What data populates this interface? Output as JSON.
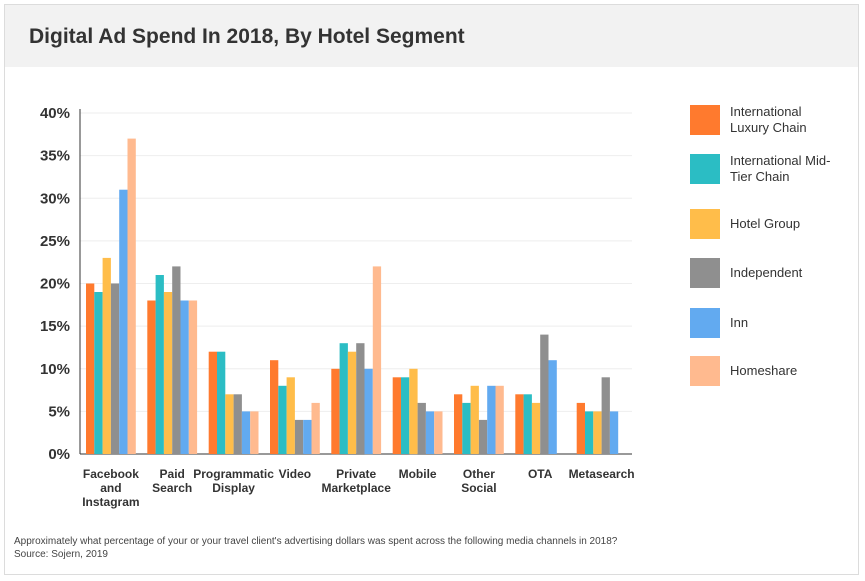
{
  "title": "Digital Ad Spend In 2018, By Hotel Segment",
  "footnote": {
    "question": "Approximately what percentage of your or your travel client's advertising dollars was spent across the following media channels in 2018?",
    "source": "Source: Sojern, 2019"
  },
  "chart_data": {
    "type": "bar",
    "title": "Digital Ad Spend In 2018, By Hotel Segment",
    "xlabel": "",
    "ylabel": "",
    "ylim": [
      0,
      40
    ],
    "yticks": [
      "0%",
      "5%",
      "10%",
      "15%",
      "20%",
      "25%",
      "30%",
      "35%",
      "40%"
    ],
    "grid": true,
    "legend_position": "right",
    "categories": [
      [
        "Facebook",
        "and",
        "Instagram"
      ],
      [
        "Paid",
        "Search"
      ],
      [
        "Programmatic",
        "Display"
      ],
      [
        "Video"
      ],
      [
        "Private",
        "Marketplace"
      ],
      [
        "Mobile"
      ],
      [
        "Other",
        "Social"
      ],
      [
        "OTA"
      ],
      [
        "Metasearch"
      ]
    ],
    "series": [
      {
        "name": "International Luxury Chain",
        "color": "#ff7a2e",
        "values": [
          20,
          18,
          12,
          11,
          10,
          9,
          7,
          7,
          6
        ]
      },
      {
        "name": "International Mid-Tier Chain",
        "color": "#2bbdc4",
        "values": [
          19,
          21,
          12,
          8,
          13,
          9,
          6,
          7,
          5
        ]
      },
      {
        "name": "Hotel Group",
        "color": "#ffbd4a",
        "values": [
          23,
          19,
          7,
          9,
          12,
          10,
          8,
          6,
          5
        ]
      },
      {
        "name": "Independent",
        "color": "#8f8f8f",
        "values": [
          20,
          22,
          7,
          4,
          13,
          6,
          4,
          14,
          9
        ]
      },
      {
        "name": "Inn",
        "color": "#62aaf0",
        "values": [
          31,
          18,
          5,
          4,
          10,
          5,
          8,
          11,
          5
        ]
      },
      {
        "name": "Homeshare",
        "color": "#ffba8f",
        "values": [
          37,
          18,
          5,
          6,
          22,
          5,
          8,
          0,
          0
        ]
      }
    ]
  }
}
